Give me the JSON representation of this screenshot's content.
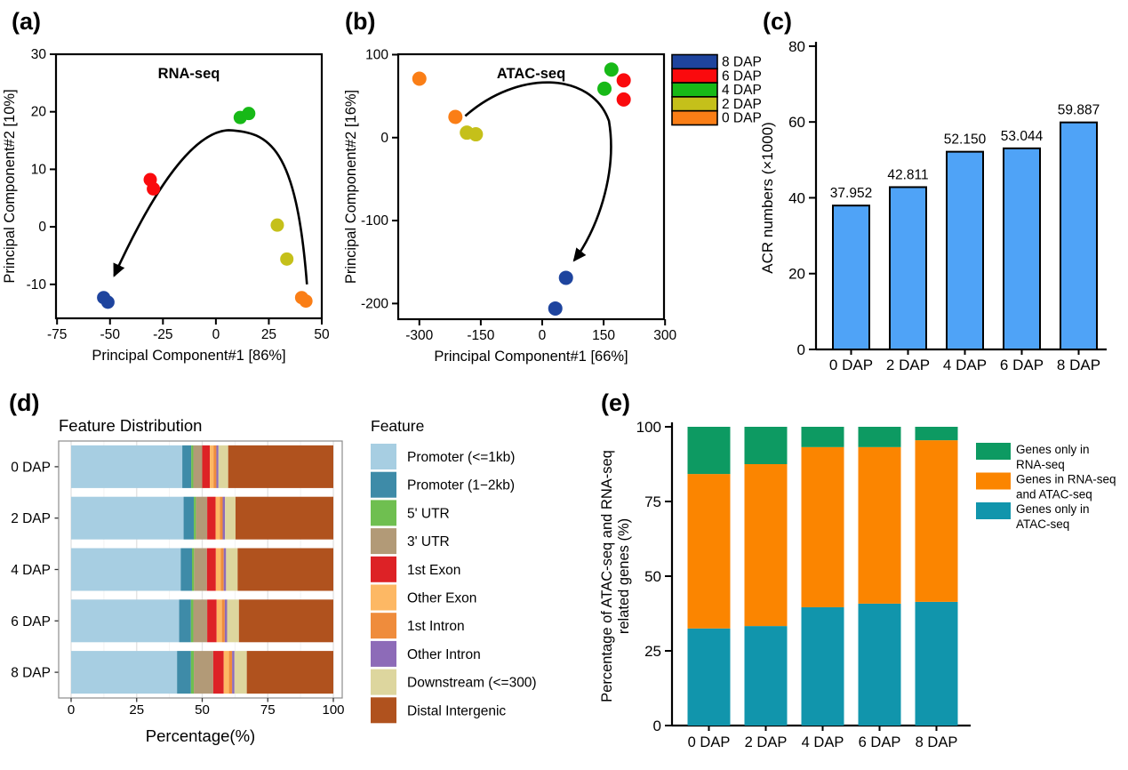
{
  "figure": {
    "panel_labels": {
      "a": "(a)",
      "b": "(b)",
      "c": "(c)",
      "d": "(d)",
      "e": "(e)"
    }
  },
  "chart_data": [
    {
      "id": "a",
      "type": "scatter",
      "title": "RNA-seq",
      "xlabel": "Principal Component#1 [86%]",
      "ylabel": "Principal Component#2 [10%]",
      "xticks": [
        -75,
        -50,
        -25,
        0,
        25,
        50
      ],
      "yticks": [
        -10,
        0,
        10,
        20,
        30
      ],
      "xlim": [
        -75.5,
        50
      ],
      "ylim": [
        -15.9,
        30
      ],
      "series": [
        {
          "name": "0 DAP",
          "color": "#FA7E16",
          "points": [
            [
              40.5,
              -12.3
            ],
            [
              42.5,
              -12.9
            ]
          ]
        },
        {
          "name": "2 DAP",
          "color": "#C5C01A",
          "points": [
            [
              29,
              0.3
            ],
            [
              33.5,
              -5.6
            ]
          ]
        },
        {
          "name": "4 DAP",
          "color": "#17B917",
          "points": [
            [
              11.5,
              19.0
            ],
            [
              15.5,
              19.7
            ]
          ]
        },
        {
          "name": "6 DAP",
          "color": "#FA0A0D",
          "points": [
            [
              -31,
              8.2
            ],
            [
              -29.5,
              6.6
            ]
          ]
        },
        {
          "name": "8 DAP",
          "color": "#1E449E",
          "points": [
            [
              -53,
              -12.3
            ],
            [
              -51,
              -13.1
            ]
          ]
        }
      ],
      "trajectory_arrow": [
        [
          43,
          -10
        ],
        [
          38,
          14
        ],
        [
          25,
          16.5
        ],
        [
          6,
          16.8
        ],
        [
          -14,
          16.5
        ],
        [
          -35,
          2
        ],
        [
          -48,
          -8.5
        ]
      ]
    },
    {
      "id": "b",
      "type": "scatter",
      "title": "ATAC-seq",
      "xlabel": "Principal Component#1 [66%]",
      "ylabel": "Principal Component#2 [16%]",
      "xticks": [
        -300,
        -150,
        0,
        150,
        300
      ],
      "yticks": [
        -200,
        -100,
        0,
        100
      ],
      "xlim": [
        -351.6,
        297.4
      ],
      "ylim": [
        -218.9,
        100.5
      ],
      "series": [
        {
          "name": "0 DAP",
          "color": "#FA7E16",
          "points": [
            [
              -300,
              71
            ],
            [
              -212,
              25
            ]
          ]
        },
        {
          "name": "2 DAP",
          "color": "#C5C01A",
          "points": [
            [
              -184,
              6
            ],
            [
              -162,
              4
            ]
          ]
        },
        {
          "name": "4 DAP",
          "color": "#17B917",
          "points": [
            [
              169,
              82
            ],
            [
              152,
              59
            ]
          ]
        },
        {
          "name": "6 DAP",
          "color": "#FA0A0D",
          "points": [
            [
              199,
              69
            ],
            [
              199,
              46
            ]
          ]
        },
        {
          "name": "8 DAP",
          "color": "#1E449E",
          "points": [
            [
              58,
              -169
            ],
            [
              32,
              -206
            ]
          ]
        }
      ],
      "trajectory_arrow": [
        [
          -188,
          26
        ],
        [
          -60,
          82
        ],
        [
          120,
          80
        ],
        [
          163,
          20
        ],
        [
          185,
          -45
        ],
        [
          130,
          -115
        ],
        [
          78,
          -148
        ]
      ],
      "legend": {
        "entries": [
          {
            "label": "8 DAP",
            "color": "#1E449E"
          },
          {
            "label": "6 DAP",
            "color": "#FA0A0D"
          },
          {
            "label": "4 DAP",
            "color": "#17B917"
          },
          {
            "label": "2 DAP",
            "color": "#C5C01A"
          },
          {
            "label": "0 DAP",
            "color": "#FA7E16"
          }
        ]
      }
    },
    {
      "id": "c",
      "type": "bar",
      "ylabel": "ACR numbers (×1000)",
      "categories": [
        "0 DAP",
        "2 DAP",
        "4 DAP",
        "6 DAP",
        "8 DAP"
      ],
      "values": [
        37.952,
        42.811,
        52.15,
        53.044,
        59.887
      ],
      "value_labels": [
        "37.952",
        "42.811",
        "52.150",
        "53.044",
        "59.887"
      ],
      "yticks": [
        0,
        20,
        40,
        60,
        80
      ],
      "ylim": [
        0,
        80
      ],
      "bar_color": "#4FA3F7"
    },
    {
      "id": "d",
      "type": "stacked-bar-horizontal",
      "title": "Feature Distribution",
      "xlabel": "Percentage(%)",
      "legend_title": "Feature",
      "categories": [
        "0 DAP",
        "2 DAP",
        "4 DAP",
        "6 DAP",
        "8 DAP"
      ],
      "xticks": [
        0,
        25,
        50,
        75,
        100
      ],
      "features": [
        {
          "name": "Promoter (<=1kb)",
          "color": "#A7CEE2"
        },
        {
          "name": "Promoter (1−2kb)",
          "color": "#3E8BA8"
        },
        {
          "name": "5' UTR",
          "color": "#6FBF50"
        },
        {
          "name": "3' UTR",
          "color": "#B29A77"
        },
        {
          "name": "1st Exon",
          "color": "#DD2226"
        },
        {
          "name": "Other Exon",
          "color": "#FDB864"
        },
        {
          "name": "1st Intron",
          "color": "#EF8C3C"
        },
        {
          "name": "Other Intron",
          "color": "#8D6BB8"
        },
        {
          "name": "Downstream (<=300)",
          "color": "#DDD69E"
        },
        {
          "name": "Distal Intergenic",
          "color": "#B0521E"
        }
      ],
      "rows": [
        {
          "category": "0 DAP",
          "values": [
            42.4,
            3.4,
            0.8,
            3.4,
            2.9,
            1.4,
            1.1,
            0.8,
            3.7,
            40.1
          ]
        },
        {
          "category": "2 DAP",
          "values": [
            42.9,
            3.9,
            0.8,
            4.3,
            3.2,
            1.6,
            1.1,
            0.9,
            4.0,
            37.3
          ]
        },
        {
          "category": "4 DAP",
          "values": [
            41.8,
            4.3,
            0.8,
            4.9,
            3.4,
            1.9,
            1.1,
            0.9,
            4.4,
            36.5
          ]
        },
        {
          "category": "6 DAP",
          "values": [
            41.2,
            4.5,
            0.9,
            5.3,
            3.6,
            2.0,
            1.1,
            0.9,
            4.5,
            36.0
          ]
        },
        {
          "category": "8 DAP",
          "values": [
            40.4,
            5.3,
            1.1,
            7.4,
            4.0,
            2.0,
            1.2,
            0.9,
            4.7,
            33.0
          ]
        }
      ]
    },
    {
      "id": "e",
      "type": "stacked-bar-vertical",
      "ylabel_lines": [
        "Percentage of ATAC-seq and RNA-seq",
        "related genes (%)"
      ],
      "categories": [
        "0 DAP",
        "2 DAP",
        "4 DAP",
        "6 DAP",
        "8 DAP"
      ],
      "yticks": [
        0,
        25,
        50,
        75,
        100
      ],
      "ylim": [
        0,
        100
      ],
      "series": [
        {
          "name": "Genes only in ATAC-seq",
          "color": "#1195AC",
          "values": [
            32.5,
            33.3,
            39.6,
            40.8,
            41.4
          ]
        },
        {
          "name": "Genes in RNA-seq and ATAC-seq",
          "color": "#FB8500",
          "values": [
            51.7,
            54.2,
            53.6,
            52.4,
            54.1
          ]
        },
        {
          "name": "Genes only in RNA-seq",
          "color": "#0D9A62",
          "values": [
            15.8,
            12.5,
            6.8,
            6.8,
            4.5
          ]
        }
      ],
      "legend": {
        "entries": [
          {
            "lines": [
              "Genes only in",
              " RNA-seq"
            ],
            "color": "#0D9A62"
          },
          {
            "lines": [
              "Genes in RNA-seq",
              " and ATAC-seq"
            ],
            "color": "#FB8500"
          },
          {
            "lines": [
              "Genes only in",
              " ATAC-seq"
            ],
            "color": "#1195AC"
          }
        ]
      }
    }
  ]
}
